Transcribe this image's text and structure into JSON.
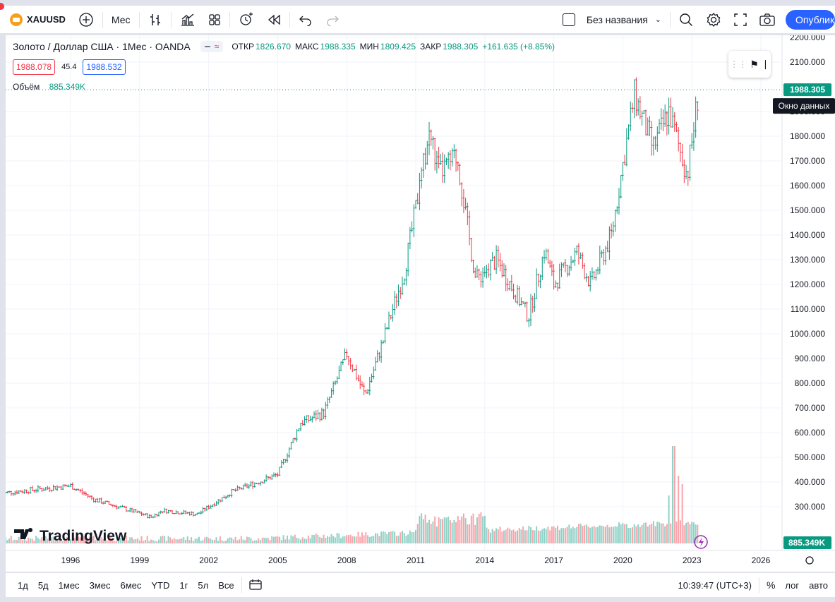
{
  "toolbar": {
    "symbol": "XAUUSD",
    "interval": "Мес",
    "layout_name": "Без названия",
    "publish": "Опублико"
  },
  "legend": {
    "title": "Золото / Доллар США · 1Мес · OANDA",
    "open_label": "ОТКР",
    "open": "1826.670",
    "high_label": "МАКС",
    "high": "1988.335",
    "low_label": "МИН",
    "low": "1809.425",
    "close_label": "ЗАКР",
    "close": "1988.305",
    "change": "+161.635 (+8.85%)",
    "sell_price": "1988.078",
    "spread": "45.4",
    "buy_price": "1988.532",
    "volume_label": "Объём",
    "volume_value": "885.349K"
  },
  "price_axis": {
    "ticks": [
      "2200.000",
      "2100.000",
      "1900.000",
      "1800.000",
      "1700.000",
      "1600.000",
      "1500.000",
      "1400.000",
      "1300.000",
      "1200.000",
      "1100.000",
      "1000.000",
      "900.000",
      "800.000",
      "700.000",
      "600.000",
      "500.000",
      "400.000",
      "300.000"
    ],
    "last_price_label": "1988.305",
    "volume_label": "885.349K",
    "tooltip": "Окно данных"
  },
  "time_axis": {
    "ticks": [
      "1996",
      "1999",
      "2002",
      "2005",
      "2008",
      "2011",
      "2014",
      "2017",
      "2020",
      "2023",
      "2026"
    ]
  },
  "watermark": "TradingView",
  "bottom": {
    "ranges": [
      "1д",
      "5д",
      "1мес",
      "3мес",
      "6мес",
      "YTD",
      "1г",
      "5л",
      "Все"
    ],
    "clock": "10:39:47 (UTC+3)",
    "percent": "%",
    "log": "лог",
    "auto": "авто"
  },
  "colors": {
    "up": "#089981",
    "down": "#f23645",
    "accent": "#2962ff"
  },
  "chart_data": {
    "type": "candlestick",
    "title": "Золото / Доллар США · 1Мес · OANDA",
    "x_ticks": [
      "1996",
      "1999",
      "2002",
      "2005",
      "2008",
      "2011",
      "2014",
      "2017",
      "2020",
      "2023",
      "2026"
    ],
    "ylim": [
      250,
      2230
    ],
    "y_ticks": [
      300,
      400,
      500,
      600,
      700,
      800,
      900,
      1000,
      1100,
      1200,
      1300,
      1400,
      1500,
      1600,
      1700,
      1800,
      1900,
      2000,
      2100,
      2200
    ],
    "anchors": [
      {
        "t": 1993.0,
        "p": 355
      },
      {
        "t": 1996.0,
        "p": 385
      },
      {
        "t": 1997.0,
        "p": 330
      },
      {
        "t": 1999.5,
        "p": 258
      },
      {
        "t": 2000.0,
        "p": 285
      },
      {
        "t": 2001.5,
        "p": 270
      },
      {
        "t": 2003.0,
        "p": 360
      },
      {
        "t": 2005.0,
        "p": 430
      },
      {
        "t": 2006.0,
        "p": 640
      },
      {
        "t": 2007.0,
        "p": 680
      },
      {
        "t": 2008.0,
        "p": 920
      },
      {
        "t": 2008.8,
        "p": 750
      },
      {
        "t": 2009.5,
        "p": 950
      },
      {
        "t": 2010.5,
        "p": 1250
      },
      {
        "t": 2011.6,
        "p": 1820
      },
      {
        "t": 2012.0,
        "p": 1650
      },
      {
        "t": 2012.8,
        "p": 1720
      },
      {
        "t": 2013.3,
        "p": 1400
      },
      {
        "t": 2013.6,
        "p": 1220
      },
      {
        "t": 2014.5,
        "p": 1300
      },
      {
        "t": 2015.9,
        "p": 1070
      },
      {
        "t": 2016.6,
        "p": 1340
      },
      {
        "t": 2017.0,
        "p": 1200
      },
      {
        "t": 2018.0,
        "p": 1330
      },
      {
        "t": 2018.6,
        "p": 1200
      },
      {
        "t": 2019.5,
        "p": 1400
      },
      {
        "t": 2020.5,
        "p": 1970
      },
      {
        "t": 2021.3,
        "p": 1750
      },
      {
        "t": 2022.0,
        "p": 1900
      },
      {
        "t": 2022.8,
        "p": 1640
      },
      {
        "t": 2023.3,
        "p": 1988
      }
    ],
    "volume_spikes": [
      {
        "t": 2022.2,
        "v": 690
      },
      {
        "t": 2022.4,
        "v": 480
      },
      {
        "t": 2022.6,
        "v": 420
      },
      {
        "t": 2022.0,
        "v": 340
      },
      {
        "t": 2011.9,
        "v": 120
      },
      {
        "t": 2013.3,
        "v": 135
      },
      {
        "t": 2013.6,
        "v": 130
      },
      {
        "t": 2020.3,
        "v": 110
      }
    ],
    "last_close": 1988.305,
    "last_volume": "885.349K"
  }
}
